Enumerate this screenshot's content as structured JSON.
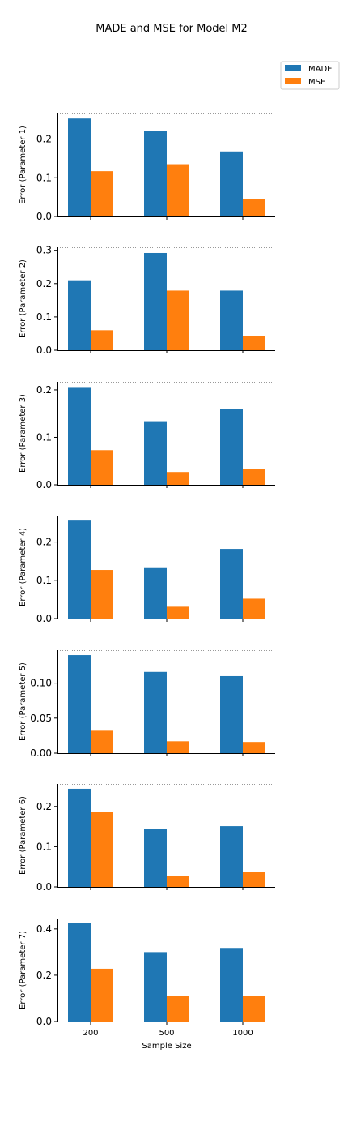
{
  "chart_data": {
    "type": "bar",
    "title": "MADE and MSE for Model M2",
    "xlabel": "Sample Size",
    "categories": [
      "200",
      "500",
      "1000"
    ],
    "legend": {
      "placement": "top-right",
      "entries": [
        {
          "name": "MADE",
          "color": "#1f77b4"
        },
        {
          "name": "MSE",
          "color": "#ff7f0e"
        }
      ]
    },
    "panels": [
      {
        "ylabel": "Error (Parameter 1)",
        "ylim": [
          0,
          0.266
        ],
        "yticks": [
          0.0,
          0.1,
          0.2
        ],
        "ytick_labels": [
          "0.0",
          "0.1",
          "0.2"
        ],
        "series": [
          {
            "name": "MADE",
            "values": [
              0.253,
              0.222,
              0.168
            ]
          },
          {
            "name": "MSE",
            "values": [
              0.117,
              0.135,
              0.046
            ]
          }
        ]
      },
      {
        "ylabel": "Error (Parameter 2)",
        "ylim": [
          0,
          0.309
        ],
        "yticks": [
          0.0,
          0.1,
          0.2,
          0.3
        ],
        "ytick_labels": [
          "0.0",
          "0.1",
          "0.2",
          "0.3"
        ],
        "series": [
          {
            "name": "MADE",
            "values": [
              0.21,
              0.292,
              0.179
            ]
          },
          {
            "name": "MSE",
            "values": [
              0.06,
              0.179,
              0.043
            ]
          }
        ]
      },
      {
        "ylabel": "Error (Parameter 3)",
        "ylim": [
          0,
          0.217
        ],
        "yticks": [
          0.0,
          0.1,
          0.2
        ],
        "ytick_labels": [
          "0.0",
          "0.1",
          "0.2"
        ],
        "series": [
          {
            "name": "MADE",
            "values": [
              0.206,
              0.134,
              0.159
            ]
          },
          {
            "name": "MSE",
            "values": [
              0.073,
              0.027,
              0.034
            ]
          }
        ]
      },
      {
        "ylabel": "Error (Parameter 4)",
        "ylim": [
          0,
          0.269
        ],
        "yticks": [
          0.0,
          0.1,
          0.2
        ],
        "ytick_labels": [
          "0.0",
          "0.1",
          "0.2"
        ],
        "series": [
          {
            "name": "MADE",
            "values": [
              0.256,
              0.134,
              0.182
            ]
          },
          {
            "name": "MSE",
            "values": [
              0.127,
              0.031,
              0.052
            ]
          }
        ]
      },
      {
        "ylabel": "Error (Parameter 5)",
        "ylim": [
          0,
          0.147
        ],
        "yticks": [
          0.0,
          0.05,
          0.1
        ],
        "ytick_labels": [
          "0.00",
          "0.05",
          "0.10"
        ],
        "series": [
          {
            "name": "MADE",
            "values": [
              0.14,
              0.116,
              0.11
            ]
          },
          {
            "name": "MSE",
            "values": [
              0.032,
              0.017,
              0.016
            ]
          }
        ]
      },
      {
        "ylabel": "Error (Parameter 6)",
        "ylim": [
          0,
          0.256
        ],
        "yticks": [
          0.0,
          0.1,
          0.2
        ],
        "ytick_labels": [
          "0.0",
          "0.1",
          "0.2"
        ],
        "series": [
          {
            "name": "MADE",
            "values": [
              0.244,
              0.144,
              0.151
            ]
          },
          {
            "name": "MSE",
            "values": [
              0.186,
              0.027,
              0.037
            ]
          }
        ]
      },
      {
        "ylabel": "Error (Parameter 7)",
        "ylim": [
          0,
          0.445
        ],
        "yticks": [
          0.0,
          0.2,
          0.4
        ],
        "ytick_labels": [
          "0.0",
          "0.2",
          "0.4"
        ],
        "series": [
          {
            "name": "MADE",
            "values": [
              0.424,
              0.3,
              0.318
            ]
          },
          {
            "name": "MSE",
            "values": [
              0.228,
              0.111,
              0.111
            ]
          }
        ]
      }
    ]
  }
}
